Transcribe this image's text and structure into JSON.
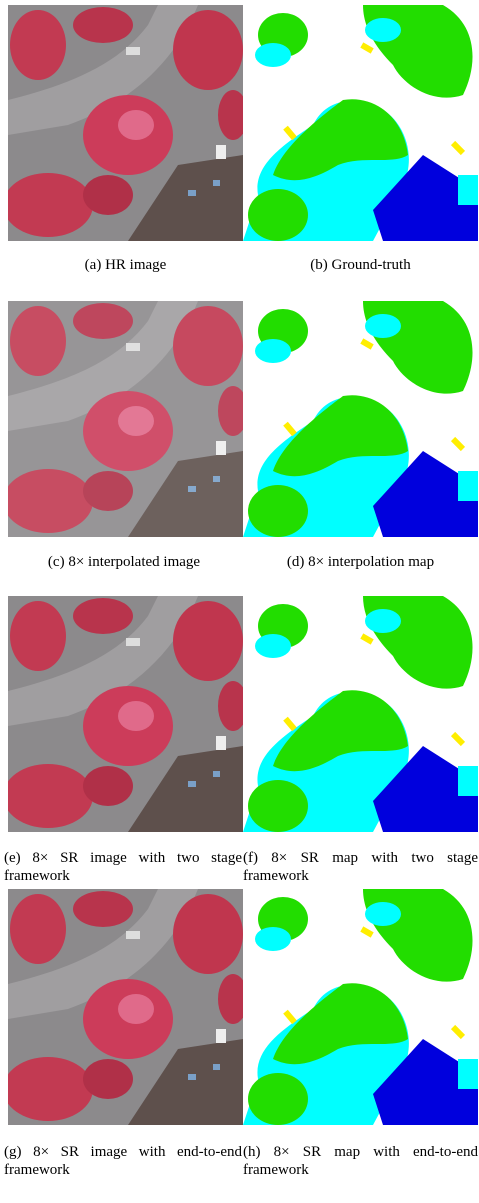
{
  "panels": [
    {
      "caption": "(a) HR image"
    },
    {
      "caption": "(b) Ground-truth"
    },
    {
      "caption": "(c) 8× interpolated image"
    },
    {
      "caption": "(d) 8× interpolation map"
    },
    {
      "caption": "(e) 8× SR image with two stage framework"
    },
    {
      "caption": "(f) 8× SR map with two stage framework"
    },
    {
      "caption": "(g) 8× SR image with end-to-end framework"
    },
    {
      "caption": "(h) 8× SR map with end-to-end framework"
    }
  ]
}
